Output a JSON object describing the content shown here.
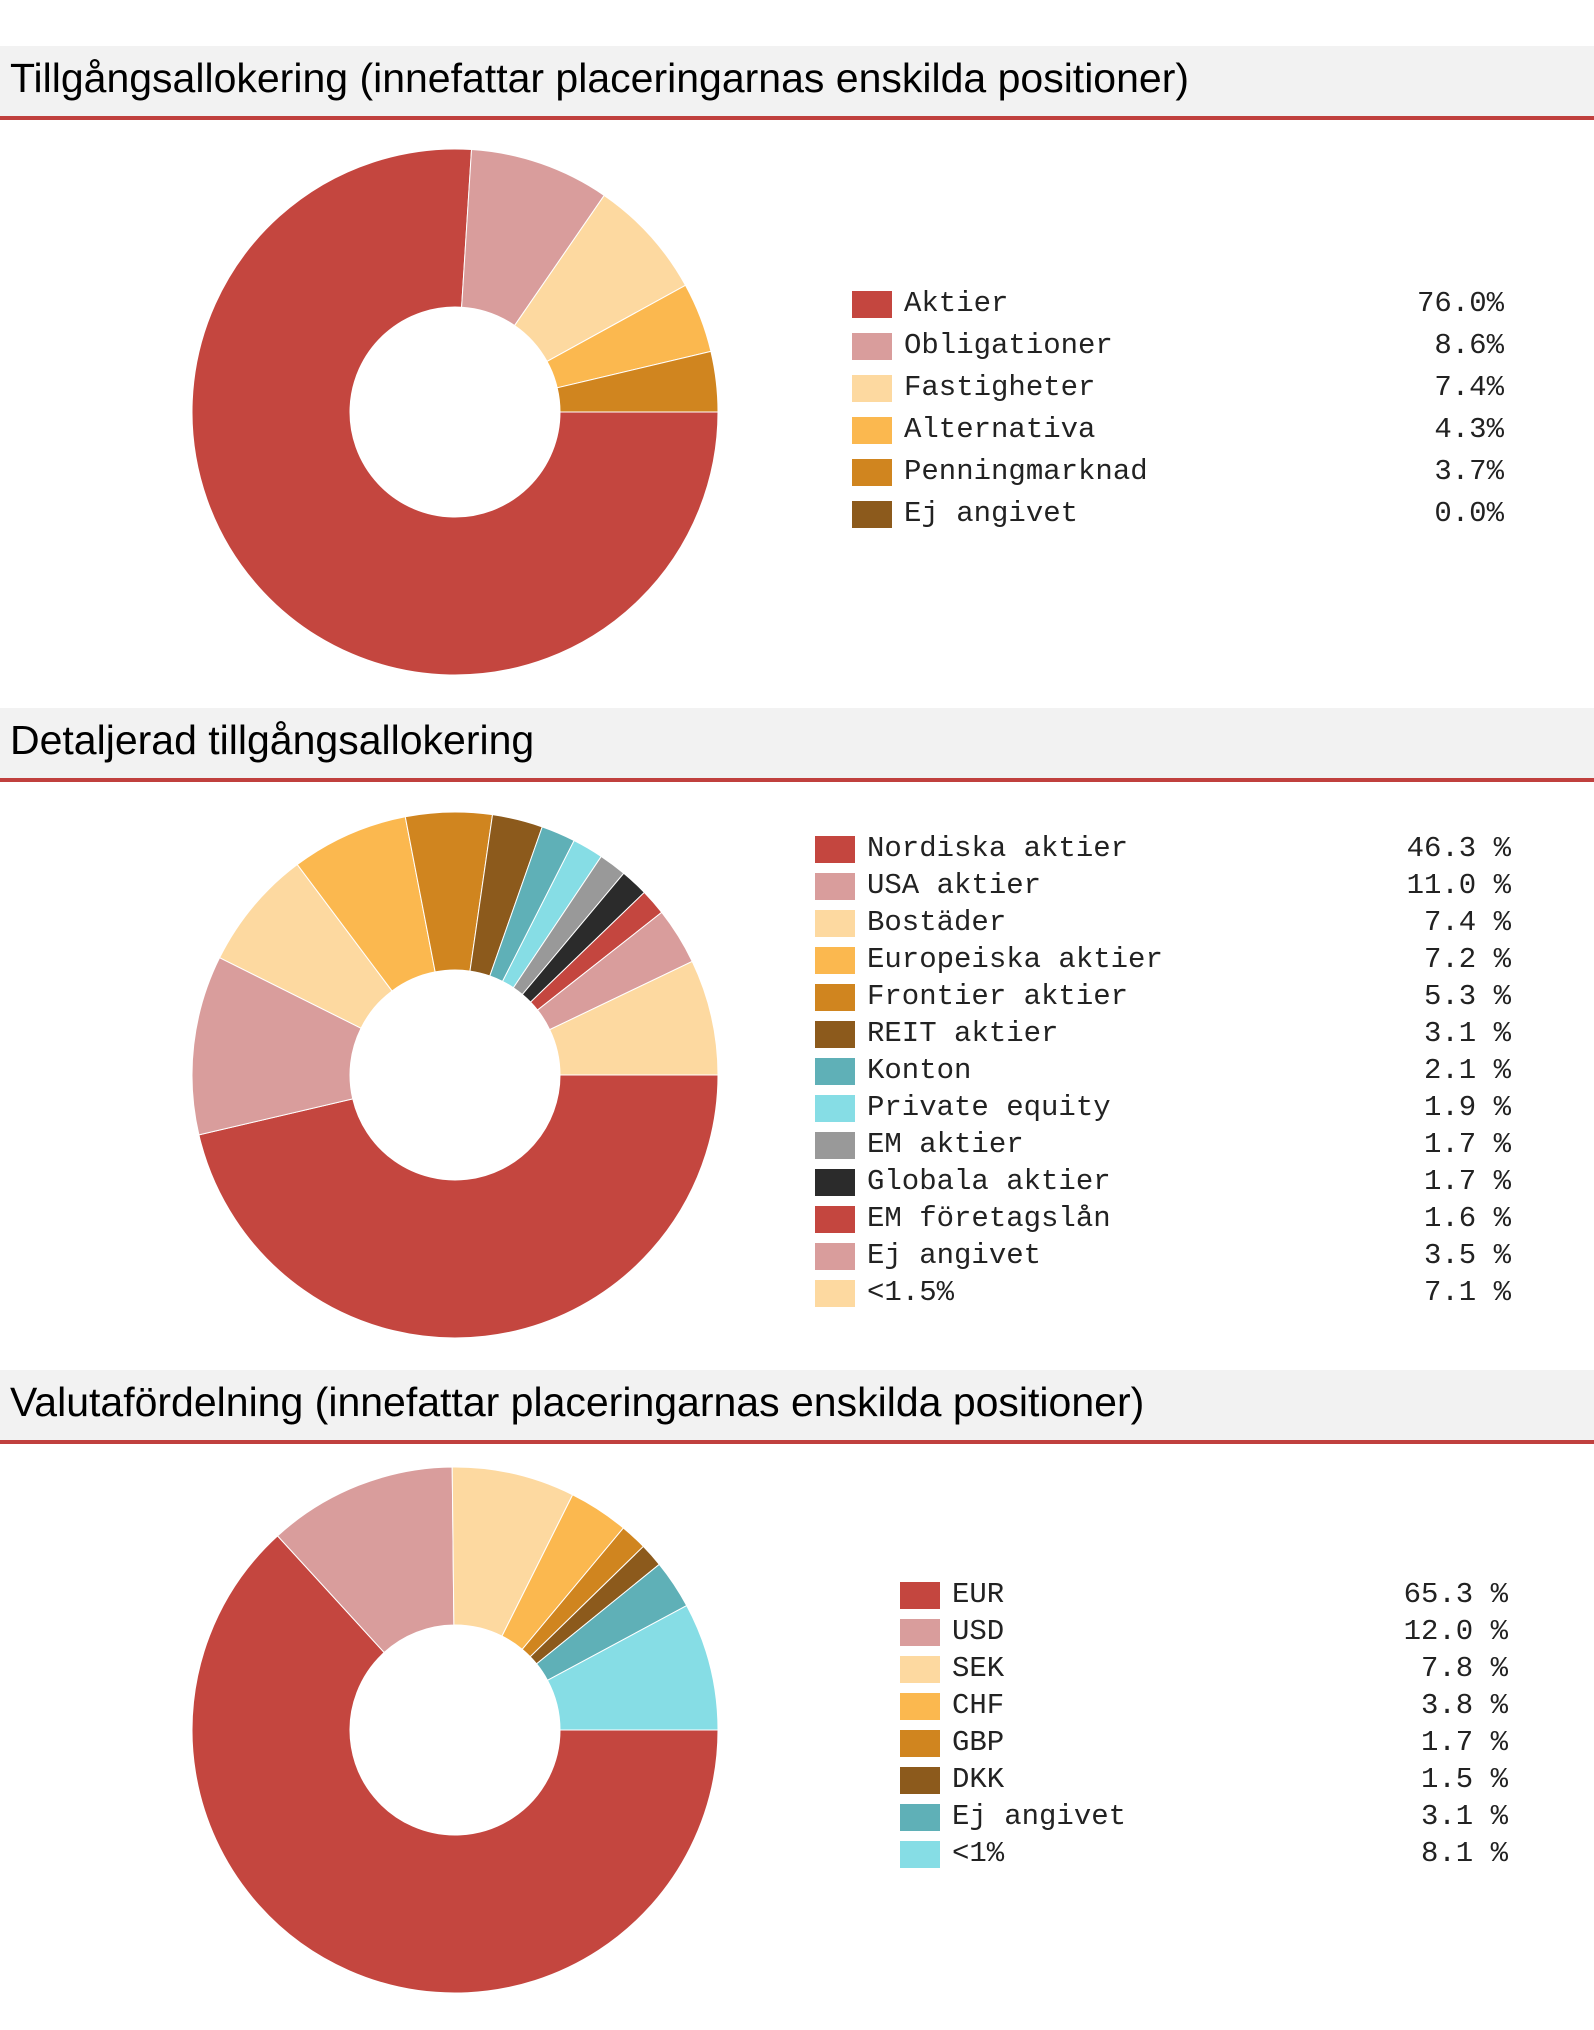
{
  "charts": [
    {
      "id": "asset",
      "title": "Tillgångsallokering (innefattar placeringarnas enskilda positioner)",
      "chart_data": {
        "type": "donut",
        "title": "Tillgångsallokering (innefattar placeringarnas enskilda positioner)",
        "categories": [
          "Aktier",
          "Obligationer",
          "Fastigheter",
          "Alternativa",
          "Penningmarknad",
          "Ej angivet"
        ],
        "values": [
          76.0,
          8.6,
          7.4,
          4.3,
          3.7,
          0.0
        ],
        "value_labels": [
          "76.0%",
          "8.6%",
          "7.4%",
          "4.3%",
          "3.7%",
          "0.0%"
        ],
        "colors": [
          "#c4463f",
          "#d99d9c",
          "#fdd9a0",
          "#fbb84f",
          "#d0851f",
          "#8c5a1c"
        ]
      }
    },
    {
      "id": "detail",
      "title": "Detaljerad tillgångsallokering",
      "chart_data": {
        "type": "donut",
        "title": "Detaljerad tillgångsallokering",
        "categories": [
          "Nordiska aktier",
          "USA aktier",
          "Bostäder",
          "Europeiska aktier",
          "Frontier aktier",
          "REIT aktier",
          "Konton",
          "Private equity",
          "EM aktier",
          "Globala aktier",
          "EM företagslån",
          "Ej angivet",
          "<1.5%"
        ],
        "values": [
          46.3,
          11.0,
          7.4,
          7.2,
          5.3,
          3.1,
          2.1,
          1.9,
          1.7,
          1.7,
          1.6,
          3.5,
          7.1
        ],
        "value_labels": [
          "46.3 %",
          "11.0 %",
          "7.4 %",
          "7.2 %",
          "5.3 %",
          "3.1 %",
          "2.1 %",
          "1.9 %",
          "1.7 %",
          "1.7 %",
          "1.6 %",
          "3.5 %",
          "7.1 %"
        ],
        "colors": [
          "#c4463f",
          "#d99d9c",
          "#fdd9a0",
          "#fbb84f",
          "#d0851f",
          "#8c5a1c",
          "#5fb0b7",
          "#86dde5",
          "#999999",
          "#2b2b2b",
          "#c4463f",
          "#d99d9c",
          "#fdd9a0"
        ]
      }
    },
    {
      "id": "currency",
      "title": "Valutafördelning (innefattar placeringarnas enskilda positioner)",
      "chart_data": {
        "type": "donut",
        "title": "Valutafördelning (innefattar placeringarnas enskilda positioner)",
        "categories": [
          "EUR",
          "USD",
          "SEK",
          "CHF",
          "GBP",
          "DKK",
          "Ej angivet",
          "<1%"
        ],
        "values": [
          65.3,
          12.0,
          7.8,
          3.8,
          1.7,
          1.5,
          3.1,
          8.1
        ],
        "value_labels": [
          "65.3 %",
          "12.0 %",
          "7.8 %",
          "3.8 %",
          "1.7 %",
          "1.5 %",
          "3.1 %",
          "8.1 %"
        ],
        "colors": [
          "#c4463f",
          "#d99d9c",
          "#fdd9a0",
          "#fbb84f",
          "#d0851f",
          "#8c5a1c",
          "#5fb0b7",
          "#86dde5"
        ]
      }
    }
  ],
  "chart_data": [
    {
      "type": "donut",
      "title": "Tillgångsallokering (innefattar placeringarnas enskilda positioner)",
      "categories": [
        "Aktier",
        "Obligationer",
        "Fastigheter",
        "Alternativa",
        "Penningmarknad",
        "Ej angivet"
      ],
      "values": [
        76.0,
        8.6,
        7.4,
        4.3,
        3.7,
        0.0
      ]
    },
    {
      "type": "donut",
      "title": "Detaljerad tillgångsallokering",
      "categories": [
        "Nordiska aktier",
        "USA aktier",
        "Bostäder",
        "Europeiska aktier",
        "Frontier aktier",
        "REIT aktier",
        "Konton",
        "Private equity",
        "EM aktier",
        "Globala aktier",
        "EM företagslån",
        "Ej angivet",
        "<1.5%"
      ],
      "values": [
        46.3,
        11.0,
        7.4,
        7.2,
        5.3,
        3.1,
        2.1,
        1.9,
        1.7,
        1.7,
        1.6,
        3.5,
        7.1
      ]
    },
    {
      "type": "donut",
      "title": "Valutafördelning (innefattar placeringarnas enskilda positioner)",
      "categories": [
        "EUR",
        "USD",
        "SEK",
        "CHF",
        "GBP",
        "DKK",
        "Ej angivet",
        "<1%"
      ],
      "values": [
        65.3,
        12.0,
        7.8,
        3.8,
        1.7,
        1.5,
        3.1,
        8.1
      ]
    }
  ]
}
